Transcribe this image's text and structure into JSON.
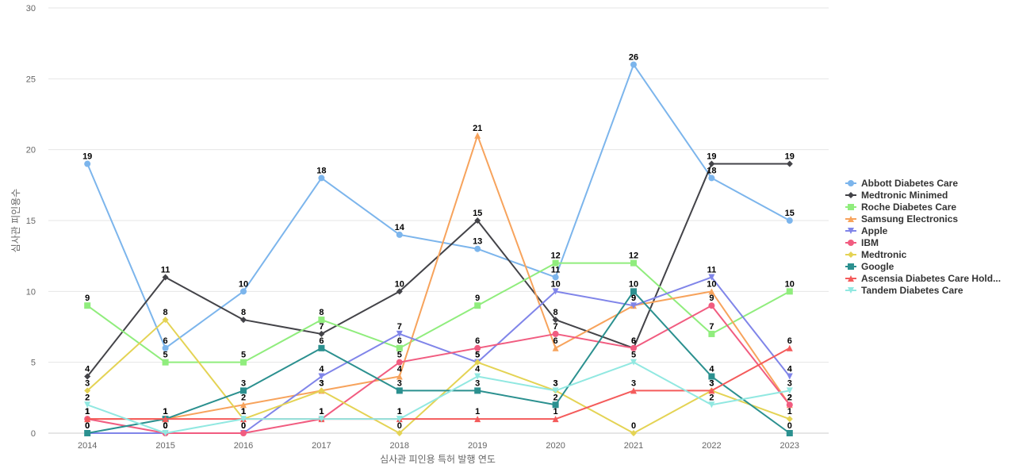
{
  "chart_data": {
    "type": "line",
    "xlabel": "심사관 피인용 특허 발행 연도",
    "ylabel": "심사관 피인용수",
    "categories": [
      "2014",
      "2015",
      "2016",
      "2017",
      "2018",
      "2019",
      "2020",
      "2021",
      "2022",
      "2023"
    ],
    "ylim": [
      0,
      30
    ],
    "yticks": [
      0,
      5,
      10,
      15,
      20,
      25,
      30
    ],
    "grid": true,
    "legend_position": "right",
    "series": [
      {
        "name": "Abbott Diabetes Care",
        "color": "#7cb5ec",
        "marker": "circle",
        "values": [
          19,
          6,
          10,
          18,
          14,
          13,
          11,
          26,
          18,
          15
        ]
      },
      {
        "name": "Medtronic Minimed",
        "color": "#434348",
        "marker": "diamond",
        "values": [
          4,
          11,
          8,
          7,
          10,
          15,
          8,
          6,
          19,
          19
        ]
      },
      {
        "name": "Roche Diabetes Care",
        "color": "#90ed7d",
        "marker": "square",
        "values": [
          9,
          5,
          5,
          8,
          6,
          9,
          12,
          12,
          7,
          10
        ]
      },
      {
        "name": "Samsung Electronics",
        "color": "#f7a35c",
        "marker": "triangle",
        "values": [
          1,
          1,
          2,
          3,
          4,
          21,
          6,
          9,
          10,
          2
        ]
      },
      {
        "name": "Apple",
        "color": "#8085e9",
        "marker": "triangle-down",
        "values": [
          0,
          0,
          0,
          4,
          7,
          5,
          10,
          9,
          11,
          4
        ]
      },
      {
        "name": "IBM",
        "color": "#f15c80",
        "marker": "circle",
        "values": [
          1,
          0,
          0,
          1,
          5,
          6,
          7,
          6,
          9,
          2
        ]
      },
      {
        "name": "Medtronic",
        "color": "#e4d354",
        "marker": "diamond",
        "values": [
          3,
          8,
          1,
          3,
          0,
          5,
          3,
          0,
          3,
          1
        ]
      },
      {
        "name": "Google",
        "color": "#2b908f",
        "marker": "square",
        "values": [
          0,
          1,
          3,
          6,
          3,
          3,
          2,
          10,
          4,
          0
        ]
      },
      {
        "name": "Ascensia Diabetes Care Hold...",
        "color": "#f45b5b",
        "marker": "triangle",
        "values": [
          1,
          1,
          1,
          1,
          1,
          1,
          1,
          3,
          3,
          6
        ]
      },
      {
        "name": "Tandem Diabetes Care",
        "color": "#91e8e1",
        "marker": "triangle-down",
        "values": [
          2,
          0,
          1,
          1,
          1,
          4,
          3,
          5,
          2,
          3
        ]
      }
    ]
  }
}
